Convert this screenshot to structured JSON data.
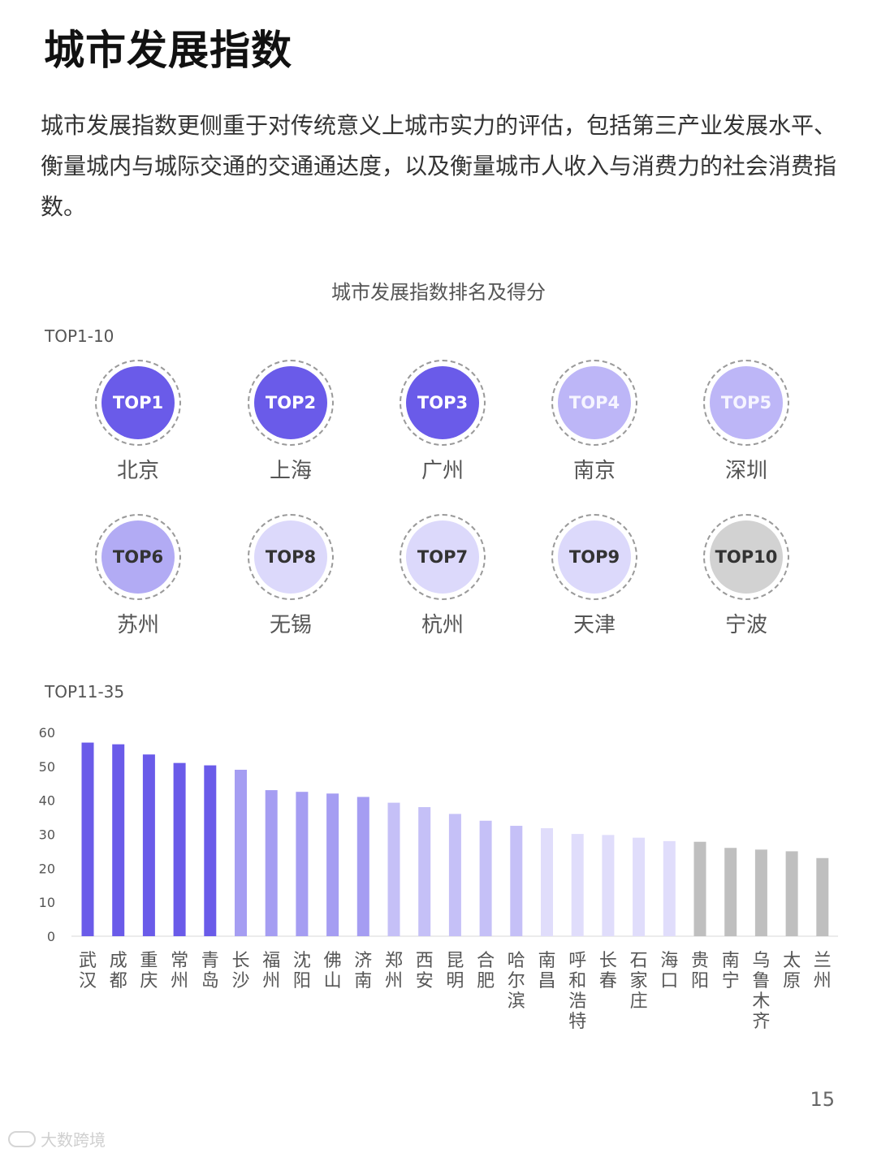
{
  "header": {
    "title": "城市发展指数",
    "intro": "城市发展指数更侧重于对传统意义上城市实力的评估，包括第三产业发展水平、衡量城内与城际交通的交通通达度，以及衡量城市人收入与消费力的社会消费指数。"
  },
  "chart_title": "城市发展指数排名及得分",
  "top10": {
    "label": "TOP1-10",
    "items": [
      {
        "rank": "TOP1",
        "city": "北京",
        "tier": "t1"
      },
      {
        "rank": "TOP2",
        "city": "上海",
        "tier": "t1"
      },
      {
        "rank": "TOP3",
        "city": "广州",
        "tier": "t1"
      },
      {
        "rank": "TOP4",
        "city": "南京",
        "tier": "t2"
      },
      {
        "rank": "TOP5",
        "city": "深圳",
        "tier": "t2"
      },
      {
        "rank": "TOP6",
        "city": "苏州",
        "tier": "t3"
      },
      {
        "rank": "TOP8",
        "city": "无锡",
        "tier": "t4"
      },
      {
        "rank": "TOP7",
        "city": "杭州",
        "tier": "t4"
      },
      {
        "rank": "TOP9",
        "city": "天津",
        "tier": "t4"
      },
      {
        "rank": "TOP10",
        "city": "宁波",
        "tier": "t5"
      }
    ]
  },
  "top35_label": "TOP11-35",
  "chart_data": {
    "type": "bar",
    "title": "",
    "xlabel": "",
    "ylabel": "",
    "ylim": [
      0,
      60
    ],
    "yticks": [
      0,
      10,
      20,
      30,
      40,
      50,
      60
    ],
    "grid": false,
    "categories": [
      "武汉",
      "成都",
      "重庆",
      "常州",
      "青岛",
      "长沙",
      "福州",
      "沈阳",
      "佛山",
      "济南",
      "郑州",
      "西安",
      "昆明",
      "合肥",
      "哈尔滨",
      "南昌",
      "呼和浩特",
      "长春",
      "石家庄",
      "海口",
      "贵阳",
      "南宁",
      "乌鲁木齐",
      "太原",
      "兰州"
    ],
    "values": [
      57,
      56.5,
      53.5,
      51,
      50.3,
      49,
      43,
      42.5,
      42,
      41,
      39.3,
      38,
      36,
      34,
      32.5,
      31.8,
      30.1,
      29.8,
      29,
      28,
      27.8,
      26,
      25.5,
      25,
      23
    ],
    "colors": [
      "#6a5be9",
      "#6a5be9",
      "#6a5be9",
      "#6a5be9",
      "#6a5be9",
      "#a59df2",
      "#a59df2",
      "#a59df2",
      "#a59df2",
      "#a59df2",
      "#c5c0f7",
      "#c5c0f7",
      "#c5c0f7",
      "#c5c0f7",
      "#c5c0f7",
      "#e0ddfb",
      "#e0ddfb",
      "#e0ddfb",
      "#e0ddfb",
      "#e0ddfb",
      "#bfbfbf",
      "#bfbfbf",
      "#bfbfbf",
      "#bfbfbf",
      "#bfbfbf"
    ]
  },
  "page_number": "15",
  "watermark": "大数跨境"
}
